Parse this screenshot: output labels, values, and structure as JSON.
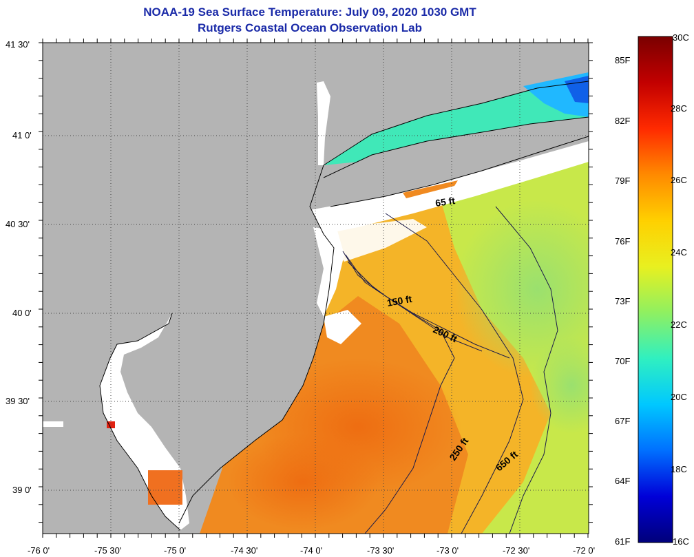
{
  "title": "NOAA-19 Sea Surface Temperature:  July 09, 2020 1030 GMT",
  "subtitle": "Rutgers Coastal Ocean Observation Lab",
  "lat_labels": [
    "41 30'",
    "41 0'",
    "40 30'",
    "40 0'",
    "39 30'",
    "39 0'"
  ],
  "lon_labels": [
    "-76 0'",
    "-75 30'",
    "-75 0'",
    "-74 30'",
    "-74 0'",
    "-73 30'",
    "-73 0'",
    "-72 30'",
    "-72 0'"
  ],
  "contours": [
    "65 ft",
    "150 ft",
    "200 ft",
    "250 ft",
    "650 ft"
  ],
  "colorbar": {
    "celsius": [
      "30C",
      "28C",
      "26C",
      "24C",
      "22C",
      "20C",
      "18C",
      "16C"
    ],
    "fahrenheit": [
      "85F",
      "82F",
      "79F",
      "76F",
      "73F",
      "70F",
      "67F",
      "64F",
      "61F"
    ],
    "colors": [
      "#7a0000",
      "#c20000",
      "#ff2a00",
      "#ff8a00",
      "#ffd000",
      "#e8f020",
      "#90f060",
      "#30f0c0",
      "#00c8ff",
      "#0070ff",
      "#0000d8",
      "#00007a"
    ]
  },
  "colors": {
    "land": "#b4b4b4",
    "no_data": "#ffffff",
    "title": "#1a2aa8",
    "warm_shelf": "#f07818",
    "mid_shelf": "#f4b428",
    "offshore": "#a8e060",
    "coastal_cool": "#40e8b8"
  }
}
